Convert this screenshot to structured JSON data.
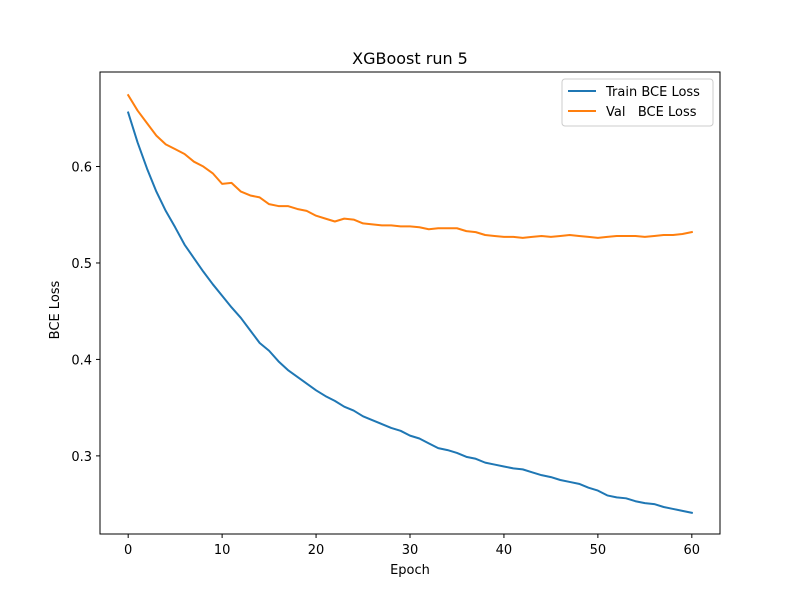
{
  "chart_data": {
    "type": "line",
    "title": "XGBoost run 5",
    "xlabel": "Epoch",
    "ylabel": "BCE Loss",
    "xlim": [
      -3,
      63
    ],
    "ylim": [
      0.219,
      0.698
    ],
    "xticks": [
      0,
      10,
      20,
      30,
      40,
      50,
      60
    ],
    "yticks": [
      0.3,
      0.4,
      0.5,
      0.6
    ],
    "grid": false,
    "legend_position": "top-right",
    "x": [
      0,
      1,
      2,
      3,
      4,
      5,
      6,
      7,
      8,
      9,
      10,
      11,
      12,
      13,
      14,
      15,
      16,
      17,
      18,
      19,
      20,
      21,
      22,
      23,
      24,
      25,
      26,
      27,
      28,
      29,
      30,
      31,
      32,
      33,
      34,
      35,
      36,
      37,
      38,
      39,
      40,
      41,
      42,
      43,
      44,
      45,
      46,
      47,
      48,
      49,
      50,
      51,
      52,
      53,
      54,
      55,
      56,
      57,
      58,
      59,
      60
    ],
    "series": [
      {
        "name": "Train BCE Loss",
        "color": "#1f77b4",
        "values": [
          0.656,
          0.625,
          0.598,
          0.574,
          0.554,
          0.537,
          0.519,
          0.505,
          0.491,
          0.478,
          0.466,
          0.454,
          0.443,
          0.43,
          0.417,
          0.409,
          0.398,
          0.389,
          0.382,
          0.375,
          0.368,
          0.362,
          0.357,
          0.351,
          0.347,
          0.341,
          0.337,
          0.333,
          0.329,
          0.326,
          0.321,
          0.318,
          0.313,
          0.308,
          0.306,
          0.303,
          0.299,
          0.297,
          0.293,
          0.291,
          0.289,
          0.287,
          0.286,
          0.283,
          0.28,
          0.278,
          0.275,
          0.273,
          0.271,
          0.267,
          0.264,
          0.259,
          0.257,
          0.256,
          0.253,
          0.251,
          0.25,
          0.247,
          0.245,
          0.243,
          0.241
        ]
      },
      {
        "name": "Val   BCE Loss",
        "color": "#ff7f0e",
        "values": [
          0.674,
          0.658,
          0.645,
          0.632,
          0.623,
          0.618,
          0.613,
          0.605,
          0.6,
          0.593,
          0.582,
          0.583,
          0.574,
          0.57,
          0.568,
          0.561,
          0.559,
          0.559,
          0.556,
          0.554,
          0.549,
          0.546,
          0.543,
          0.546,
          0.545,
          0.541,
          0.54,
          0.539,
          0.539,
          0.538,
          0.538,
          0.537,
          0.535,
          0.536,
          0.536,
          0.536,
          0.533,
          0.532,
          0.529,
          0.528,
          0.527,
          0.527,
          0.526,
          0.527,
          0.528,
          0.527,
          0.528,
          0.529,
          0.528,
          0.527,
          0.526,
          0.527,
          0.528,
          0.528,
          0.528,
          0.527,
          0.528,
          0.529,
          0.529,
          0.53,
          0.532
        ]
      }
    ]
  }
}
